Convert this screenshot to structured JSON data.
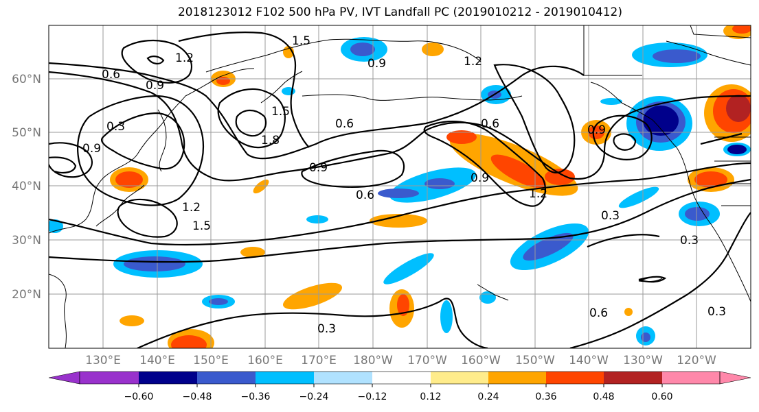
{
  "title": "2018123012 F102 500 hPa PV, IVT Landfall PC (2019010212 - 2019010412)",
  "map": {
    "lat_labels": [
      "60°N",
      "50°N",
      "40°N",
      "30°N",
      "20°N"
    ],
    "lon_labels": [
      "130°E",
      "140°E",
      "150°E",
      "160°E",
      "170°E",
      "180°W",
      "170°W",
      "160°W",
      "150°W",
      "140°W",
      "130°W",
      "120°W"
    ],
    "contour_labels": [
      "0.6",
      "0.9",
      "1.2",
      "1.5",
      "1.8",
      "0.3"
    ]
  },
  "colorbar": {
    "tick_labels": [
      "−0.60",
      "−0.48",
      "−0.36",
      "−0.24",
      "−0.12",
      "0.12",
      "0.24",
      "0.36",
      "0.48",
      "0.60"
    ],
    "colors": [
      "#9932cc",
      "#00008b",
      "#3a5acd",
      "#00bfff",
      "#b0e2ff",
      "#ffffff",
      "#ffec8b",
      "#ffa500",
      "#ff4500",
      "#b22222",
      "#ff88aa"
    ]
  }
}
